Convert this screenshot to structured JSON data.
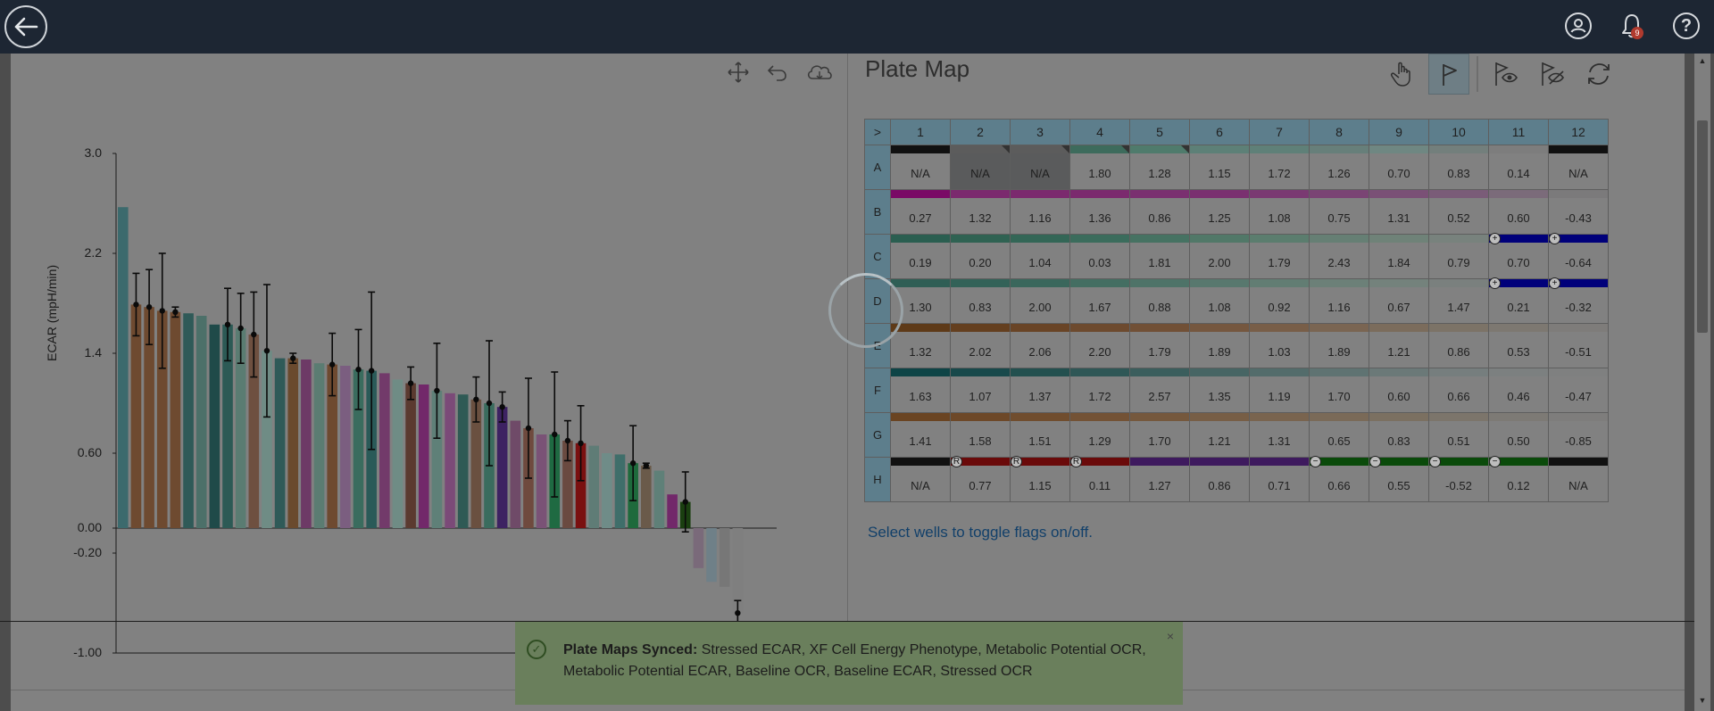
{
  "header": {
    "notification_count": "9",
    "help_label": "?"
  },
  "icons": {
    "back": "back-arrow-icon",
    "user": "user-icon",
    "bell": "bell-icon",
    "help": "help-icon",
    "move": "move-icon",
    "undo": "undo-icon",
    "cloud": "cloud-icon",
    "hand": "hand-icon",
    "flag": "flag-icon",
    "flag_show": "flag-show-icon",
    "flag_hide": "flag-hide-icon",
    "sync": "refresh-icon"
  },
  "chart_data": {
    "type": "bar",
    "ylabel": "ECAR (mpH/min)",
    "ylim": [
      -1.0,
      3.0
    ],
    "yticks": [
      "3.0",
      "2.2",
      "1.4",
      "0.60",
      "0.00",
      "-0.20",
      "-1.00"
    ],
    "ytick_values": [
      3.0,
      2.2,
      1.4,
      0.6,
      0.0,
      -0.2,
      -1.0
    ],
    "bars": [
      {
        "value": 2.57,
        "color": "#3c6a6d"
      },
      {
        "value": 1.79,
        "color": "#6e4a30",
        "err": 0.25
      },
      {
        "value": 1.77,
        "color": "#6e4a30",
        "err": 0.3
      },
      {
        "value": 1.74,
        "color": "#6e4a30",
        "err": 0.46
      },
      {
        "value": 1.73,
        "color": "#6e4a30",
        "err": 0.04
      },
      {
        "value": 1.72,
        "color": "#2f5a58"
      },
      {
        "value": 1.7,
        "color": "#4c7069"
      },
      {
        "value": 1.63,
        "color": "#1f4a49"
      },
      {
        "value": 1.63,
        "color": "#2c5a55",
        "err": 0.29
      },
      {
        "value": 1.6,
        "color": "#5a7c72",
        "err": 0.28
      },
      {
        "value": 1.55,
        "color": "#6e5040",
        "err": 0.34
      },
      {
        "value": 1.42,
        "color": "#6f8c85",
        "err": 0.53
      },
      {
        "value": 1.36,
        "color": "#2f5a58"
      },
      {
        "value": 1.36,
        "color": "#6a4a2e",
        "err": 0.04
      },
      {
        "value": 1.35,
        "color": "#6d3a66"
      },
      {
        "value": 1.32,
        "color": "#5b7c72"
      },
      {
        "value": 1.31,
        "color": "#6e4a30",
        "err": 0.25
      },
      {
        "value": 1.3,
        "color": "#7b5e80"
      },
      {
        "value": 1.27,
        "color": "#3a6c5e",
        "err": 0.32
      },
      {
        "value": 1.26,
        "color": "#2a5a58",
        "err": 0.63
      },
      {
        "value": 1.24,
        "color": "#723a6a"
      },
      {
        "value": 1.19,
        "color": "#6f8c85"
      },
      {
        "value": 1.16,
        "color": "#5b3a30",
        "err": 0.13
      },
      {
        "value": 1.15,
        "color": "#72286a"
      },
      {
        "value": 1.1,
        "color": "#5f8078",
        "err": 0.38
      },
      {
        "value": 1.08,
        "color": "#7b4a78"
      },
      {
        "value": 1.07,
        "color": "#2f5a55"
      },
      {
        "value": 1.03,
        "color": "#6a5040",
        "err": 0.18
      },
      {
        "value": 1.0,
        "color": "#3a6c5e",
        "err": 0.5
      },
      {
        "value": 0.97,
        "color": "#3d2262",
        "err": 0.12
      },
      {
        "value": 0.86,
        "color": "#6f4a68"
      },
      {
        "value": 0.8,
        "color": "#6f4a3e",
        "err": 0.4
      },
      {
        "value": 0.75,
        "color": "#7a5276"
      },
      {
        "value": 0.75,
        "color": "#1f6a42",
        "err": 0.5
      },
      {
        "value": 0.7,
        "color": "#6a4a40",
        "err": 0.16
      },
      {
        "value": 0.68,
        "color": "#7a1010",
        "err": 0.3
      },
      {
        "value": 0.66,
        "color": "#5f7c76"
      },
      {
        "value": 0.6,
        "color": "#6f8c88"
      },
      {
        "value": 0.59,
        "color": "#3f6e6a"
      },
      {
        "value": 0.52,
        "color": "#1e6a3c",
        "err": 0.3
      },
      {
        "value": 0.5,
        "color": "#6a5a4a",
        "err": 0.02
      },
      {
        "value": 0.46,
        "color": "#5f8078"
      },
      {
        "value": 0.27,
        "color": "#72286a"
      },
      {
        "value": 0.21,
        "color": "#1a3f10",
        "err": 0.24
      },
      {
        "value": -0.32,
        "color": "#7a6a7a"
      },
      {
        "value": -0.43,
        "color": "#6f8088"
      },
      {
        "value": -0.47,
        "color": "#777777"
      },
      {
        "value": -0.68,
        "color": "#7f7f7f",
        "err": 0.1
      }
    ]
  },
  "plate": {
    "title": "Plate Map",
    "corner": ">",
    "columns": [
      "1",
      "2",
      "3",
      "4",
      "5",
      "6",
      "7",
      "8",
      "9",
      "10",
      "11",
      "12"
    ],
    "rows": [
      {
        "label": "A",
        "values": [
          "N/A",
          "N/A",
          "N/A",
          "1.80",
          "1.28",
          "1.15",
          "1.72",
          "1.26",
          "0.70",
          "0.83",
          "0.14",
          "N/A"
        ],
        "strips": [
          "#111111",
          "#5c5c5c",
          "#5c5c5c",
          "#3d6b5c",
          "#4f7b6c",
          "#5d8077",
          "#5f8078",
          "#677f7a",
          "#6f8782",
          "#737f7c",
          "#7d7d7d",
          "#111111"
        ],
        "dark": [
          false,
          true,
          true,
          false,
          false,
          false,
          false,
          false,
          false,
          false,
          false,
          false
        ]
      },
      {
        "label": "B",
        "values": [
          "0.27",
          "1.32",
          "1.16",
          "1.36",
          "0.86",
          "1.25",
          "1.08",
          "0.75",
          "1.31",
          "0.52",
          "0.60",
          "-0.43"
        ],
        "strips": [
          "#7a0a66",
          "#7b2a6e",
          "#7b2a6e",
          "#7b2a6e",
          "#7a3070",
          "#7a3070",
          "#7a3a72",
          "#7a4474",
          "#7a5076",
          "#7a5c78",
          "#7b6b7a",
          "#7b7a7b"
        ]
      },
      {
        "label": "C",
        "values": [
          "0.19",
          "0.20",
          "1.04",
          "0.03",
          "1.81",
          "2.00",
          "1.79",
          "2.43",
          "1.84",
          "0.79",
          "0.70",
          "-0.64"
        ],
        "strips": [
          "#2a5e50",
          "#2f6252",
          "#336656",
          "#3b6c5c",
          "#467262",
          "#517868",
          "#5b7d6e",
          "#667f74",
          "#6f8278",
          "#78827d",
          "#00007a",
          "#00007a"
        ],
        "flags": {
          "10": "+",
          "11": "+"
        }
      },
      {
        "label": "D",
        "values": [
          "1.30",
          "0.83",
          "2.00",
          "1.67",
          "0.88",
          "1.08",
          "0.92",
          "1.16",
          "0.67",
          "1.47",
          "0.21",
          "-0.32"
        ],
        "strips": [
          "#2f5e55",
          "#336258",
          "#3a675c",
          "#446e62",
          "#4e7368",
          "#58786e",
          "#627d73",
          "#6c8078",
          "#74827c",
          "#7a807e",
          "#00007a",
          "#00007a"
        ],
        "flags": {
          "10": "+",
          "11": "+"
        }
      },
      {
        "label": "E",
        "values": [
          "1.32",
          "2.02",
          "2.06",
          "2.20",
          "1.79",
          "1.89",
          "1.03",
          "1.89",
          "1.21",
          "0.86",
          "0.53",
          "-0.51"
        ],
        "strips": [
          "#5e3a18",
          "#643f1f",
          "#694426",
          "#6d4a2e",
          "#715036",
          "#75573f",
          "#785e48",
          "#7a6552",
          "#7b6c5c",
          "#7c7367",
          "#7d7871",
          "#7e7c7a"
        ]
      },
      {
        "label": "F",
        "values": [
          "1.63",
          "1.07",
          "1.37",
          "1.72",
          "2.57",
          "1.35",
          "1.19",
          "1.70",
          "0.60",
          "0.66",
          "0.46",
          "-0.47"
        ],
        "strips": [
          "#0e4446",
          "#18494b",
          "#23504f",
          "#2f5756",
          "#3b5e5d",
          "#476564",
          "#536c6b",
          "#5f7372",
          "#6b7978",
          "#767e7e",
          "#7c8080",
          "#7f8080"
        ]
      },
      {
        "label": "G",
        "values": [
          "1.41",
          "1.58",
          "1.51",
          "1.29",
          "1.70",
          "1.21",
          "1.31",
          "0.65",
          "0.83",
          "0.51",
          "0.50",
          "-0.85"
        ],
        "strips": [
          "#6a4422",
          "#6d4828",
          "#704d2e",
          "#735235",
          "#75583d",
          "#775e46",
          "#79644f",
          "#7a6a58",
          "#7b7061",
          "#7c756b",
          "#7d7a75",
          "#7e7d7c"
        ]
      },
      {
        "label": "H",
        "values": [
          "N/A",
          "0.77",
          "1.15",
          "0.11",
          "1.27",
          "0.86",
          "0.71",
          "0.66",
          "0.55",
          "-0.52",
          "0.12",
          "N/A"
        ],
        "strips": [
          "#111111",
          "#6a0a0a",
          "#6a0a0a",
          "#6a0a0a",
          "#3e1a5e",
          "#3e1a5e",
          "#3e1a5e",
          "#0a4a0a",
          "#0a4a0a",
          "#0a4a0a",
          "#0a4a0a",
          "#111111"
        ],
        "flags": {
          "1": "R",
          "2": "R",
          "3": "R",
          "7": "−",
          "8": "−",
          "9": "−",
          "10": "−"
        }
      }
    ],
    "hint": "Select wells to toggle flags on/off."
  },
  "toast": {
    "title": "Plate Maps Synced:",
    "message": " Stressed ECAR, XF Cell Energy Phenotype, Metabolic Potential OCR, Metabolic Potential ECAR, Baseline OCR, Baseline ECAR, Stressed OCR",
    "close": "×",
    "check": "✓"
  }
}
